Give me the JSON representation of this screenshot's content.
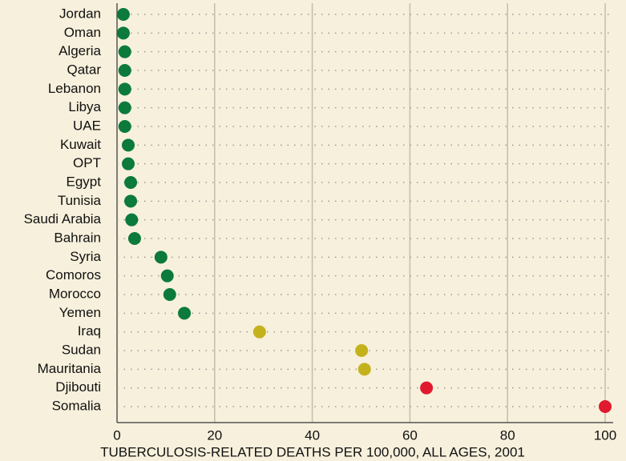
{
  "chart_data": {
    "type": "dot",
    "x_label": "TUBERCULOSIS-RELATED DEATHS PER 100,000, ALL AGES, 2001",
    "categories": [
      "Jordan",
      "Oman",
      "Algeria",
      "Qatar",
      "Lebanon",
      "Libya",
      "UAE",
      "Kuwait",
      "OPT",
      "Egypt",
      "Tunisia",
      "Saudi Arabia",
      "Bahrain",
      "Syria",
      "Comoros",
      "Morocco",
      "Yemen",
      "Iraq",
      "Sudan",
      "Mauritania",
      "Djibouti",
      "Somalia"
    ],
    "values": [
      1.3,
      1.3,
      1.6,
      1.6,
      1.6,
      1.6,
      1.6,
      2.3,
      2.3,
      2.8,
      2.8,
      3.0,
      3.6,
      9.0,
      10.3,
      10.8,
      13.8,
      29.2,
      50.1,
      50.7,
      63.4,
      100
    ],
    "colors": [
      "#0b7a3b",
      "#0b7a3b",
      "#0b7a3b",
      "#0b7a3b",
      "#0b7a3b",
      "#0b7a3b",
      "#0b7a3b",
      "#0b7a3b",
      "#0b7a3b",
      "#0b7a3b",
      "#0b7a3b",
      "#0b7a3b",
      "#0b7a3b",
      "#0b7a3b",
      "#0b7a3b",
      "#0b7a3b",
      "#0b7a3b",
      "#c4b21c",
      "#c4b21c",
      "#c4b21c",
      "#e0192e",
      "#e0192e"
    ],
    "xlim": [
      0,
      100
    ],
    "xticks": [
      0,
      20,
      40,
      60,
      80,
      100
    ],
    "grid": true
  }
}
